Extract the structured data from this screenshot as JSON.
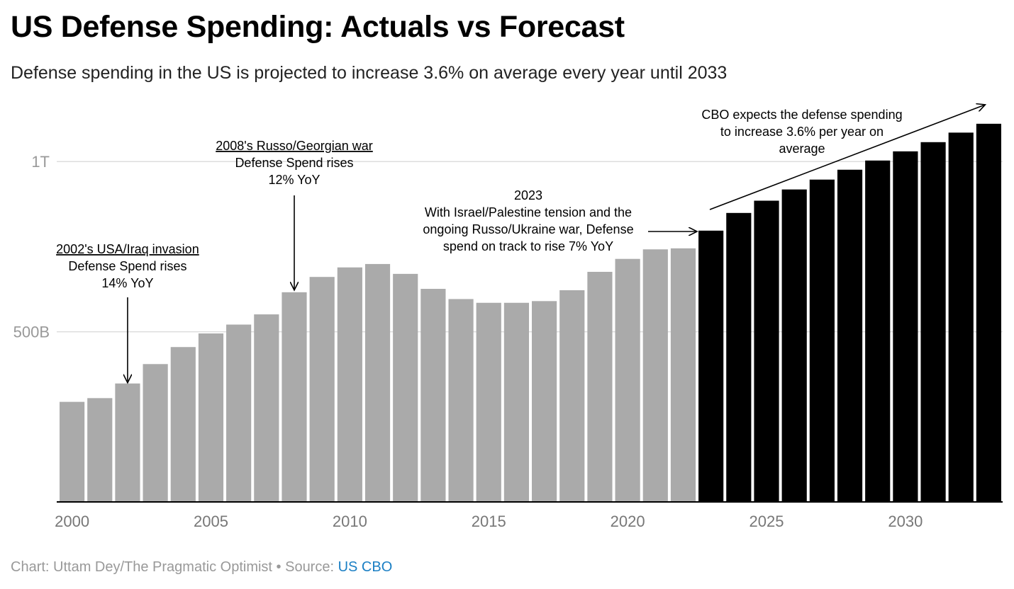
{
  "chart_data": {
    "type": "bar",
    "title": "US Defense Spending: Actuals vs Forecast",
    "subtitle": "Defense spending in the US is projected to increase 3.6% on average every year until 2033",
    "x": [
      2000,
      2001,
      2002,
      2003,
      2004,
      2005,
      2006,
      2007,
      2008,
      2009,
      2010,
      2011,
      2012,
      2013,
      2014,
      2015,
      2016,
      2017,
      2018,
      2019,
      2020,
      2021,
      2022,
      2023,
      2024,
      2025,
      2026,
      2027,
      2028,
      2029,
      2030,
      2031,
      2032,
      2033
    ],
    "values": [
      294,
      305,
      348,
      405,
      455,
      495,
      521,
      551,
      616,
      661,
      689,
      699,
      670,
      626,
      596,
      585,
      585,
      590,
      622,
      676,
      714,
      742,
      745,
      797,
      849,
      885,
      918,
      947,
      976,
      1003,
      1030,
      1057,
      1085,
      1111
    ],
    "actual_color": "#aaaaaa",
    "forecast_color": "#000000",
    "forecast_start_year": 2023,
    "ylim": [
      0,
      1150
    ],
    "y_ticks": [
      {
        "value": 500,
        "label": "500B"
      },
      {
        "value": 1000,
        "label": "1T"
      }
    ],
    "x_ticks": [
      2000,
      2005,
      2010,
      2015,
      2020,
      2025,
      2030
    ],
    "xlim": [
      2000,
      2033
    ],
    "annotations": [
      {
        "id": "iraq",
        "year": 2002,
        "lines": [
          "2002's USA/Iraq invasion",
          "Defense Spend rises",
          "14% YoY"
        ],
        "underline_first": true
      },
      {
        "id": "georgia",
        "year": 2008,
        "lines": [
          "2008's Russo/Georgian war",
          "Defense Spend rises",
          "12% YoY"
        ],
        "underline_first": true
      },
      {
        "id": "ukraine",
        "year": 2023,
        "lines": [
          "2023",
          "With Israel/Palestine tension and the",
          "ongoing Russo/Ukraine war, Defense",
          "spend on track to rise 7% YoY"
        ],
        "underline_first": false
      },
      {
        "id": "cbo",
        "year": 2033,
        "lines": [
          "CBO expects the  defense spending",
          "to increase 3.6% per year on",
          "average"
        ],
        "underline_first": false
      }
    ]
  },
  "footer": {
    "credit": "Chart: Uttam Dey/The Pragmatic Optimist • Source: ",
    "source_link": "US CBO"
  }
}
